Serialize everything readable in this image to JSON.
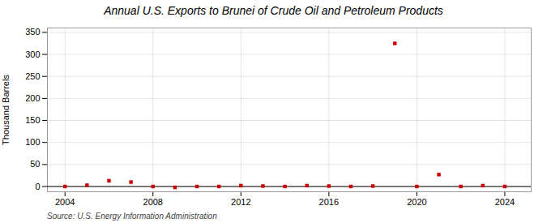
{
  "chart_data": {
    "type": "scatter",
    "title": "Annual U.S. Exports to Brunei of Crude Oil and Petroleum Products",
    "ylabel": "Thousand Barrels",
    "annotations": [
      "Source: U.S. Energy Information Administration"
    ],
    "x": [
      2004,
      2005,
      2006,
      2007,
      2008,
      2009,
      2010,
      2011,
      2012,
      2013,
      2014,
      2015,
      2016,
      2017,
      2018,
      2019,
      2020,
      2021,
      2022,
      2023,
      2024
    ],
    "values": [
      0,
      3,
      13,
      10,
      0,
      -2,
      0,
      0,
      2,
      1,
      0,
      2,
      1,
      0,
      1,
      325,
      0,
      27,
      0,
      2,
      0
    ],
    "color": "#cc0000",
    "marker": "square",
    "xlim": [
      2003.2,
      2025.2
    ],
    "ylim": [
      -12,
      360
    ],
    "xticks": [
      2004,
      2008,
      2012,
      2016,
      2020,
      2024
    ],
    "yticks": [
      0,
      50,
      100,
      150,
      200,
      250,
      300,
      350
    ],
    "grid": true
  }
}
